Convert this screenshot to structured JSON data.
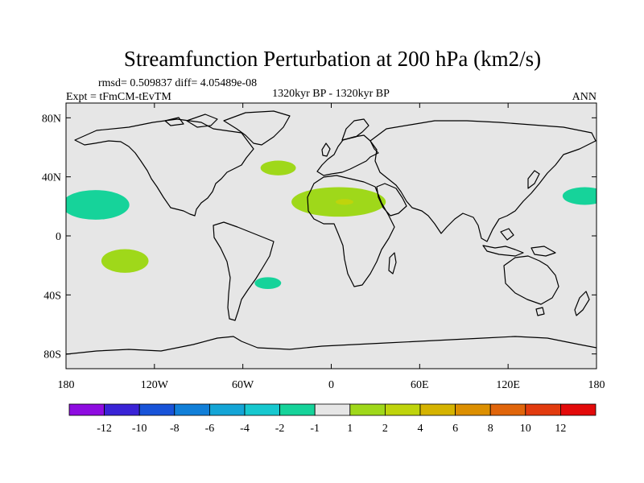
{
  "title": "Streamfunction Perturbation at 200 hPa (km2/s)",
  "stats": "rmsd= 0.509837 diff= 4.05489e-08",
  "left_label": "Expt = tFmCM-tEvTM",
  "center_label": "1320kyr BP - 1320kyr BP",
  "right_label": "ANN",
  "chart_data": {
    "type": "heatmap",
    "projection": "cylindrical-equidistant",
    "lon_range": [
      -180,
      180
    ],
    "lat_range": [
      -90,
      90
    ],
    "x_ticks": [
      {
        "lon": -180,
        "label": "180"
      },
      {
        "lon": -120,
        "label": "120W"
      },
      {
        "lon": -60,
        "label": "60W"
      },
      {
        "lon": 0,
        "label": "0"
      },
      {
        "lon": 60,
        "label": "60E"
      },
      {
        "lon": 120,
        "label": "120E"
      },
      {
        "lon": 180,
        "label": "180"
      }
    ],
    "y_ticks": [
      {
        "lat": 80,
        "label": "80N"
      },
      {
        "lat": 40,
        "label": "40N"
      },
      {
        "lat": 0,
        "label": "0"
      },
      {
        "lat": -40,
        "label": "40S"
      },
      {
        "lat": -80,
        "label": "80S"
      }
    ],
    "background_color": "#e6e6e6",
    "colorbar": {
      "colors": [
        "#8e0ce0",
        "#3a23d6",
        "#1853d8",
        "#117fd8",
        "#14a5d6",
        "#17c8cf",
        "#16d39a",
        "#e6e6e6",
        "#9fd81a",
        "#bfd40c",
        "#d5b300",
        "#dc8f00",
        "#e0650b",
        "#e23b0e",
        "#e30a0a"
      ],
      "labels": [
        "-12",
        "-10",
        "-8",
        "-6",
        "-4",
        "-2",
        "-1",
        "1",
        "2",
        "4",
        "6",
        "8",
        "10",
        "12"
      ]
    },
    "anomalies": [
      {
        "name": "north-pacific-west-negative",
        "lon": -160,
        "lat": 21,
        "rlon": 23,
        "rlat": 10,
        "value": -1.5,
        "color": "#16d39a"
      },
      {
        "name": "north-pacific-east-negative",
        "lon": 172,
        "lat": 27,
        "rlon": 15,
        "rlat": 6,
        "value": -1.5,
        "color": "#16d39a"
      },
      {
        "name": "south-pacific-positive",
        "lon": -140,
        "lat": -17,
        "rlon": 16,
        "rlat": 8,
        "value": 1.5,
        "color": "#9fd81a"
      },
      {
        "name": "north-atlantic-positive",
        "lon": -36,
        "lat": 46,
        "rlon": 12,
        "rlat": 5,
        "value": 1.5,
        "color": "#9fd81a"
      },
      {
        "name": "africa-positive",
        "lon": 5,
        "lat": 23,
        "rlon": 32,
        "rlat": 10,
        "value": 1.5,
        "color": "#9fd81a"
      },
      {
        "name": "africa-core-positive",
        "lon": 9,
        "lat": 23,
        "rlon": 6,
        "rlat": 2,
        "value": 3,
        "color": "#bfd40c"
      },
      {
        "name": "south-atlantic-negative",
        "lon": -43,
        "lat": -32,
        "rlon": 9,
        "rlat": 4,
        "value": -1.5,
        "color": "#16d39a"
      }
    ]
  }
}
